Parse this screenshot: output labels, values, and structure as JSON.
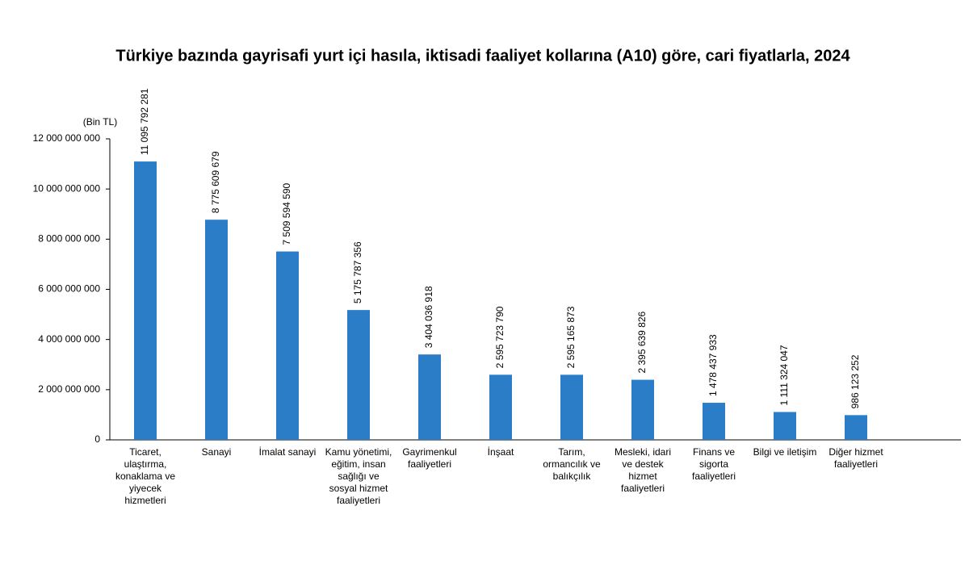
{
  "chart_data": {
    "type": "bar",
    "title": "Türkiye bazında gayrisafi yurt içi hasıla, iktisadi faaliyet kollarına (A10) göre, cari fiyatlarla, 2024",
    "y_label": "(Bin TL)",
    "categories": [
      "Ticaret, ulaştırma, konaklama ve yiyecek hizmetleri",
      "Sanayi",
      "İmalat sanayi",
      "Kamu yönetimi, eğitim, insan sağlığı ve sosyal hizmet faaliyetleri",
      "Gayrimenkul faaliyetleri",
      "İnşaat",
      "Tarım, ormancılık ve balıkçılık",
      "Mesleki, idari ve destek hizmet faaliyetleri",
      "Finans ve sigorta faaliyetleri",
      "Bilgi ve iletişim",
      "Diğer hizmet faaliyetleri"
    ],
    "values": [
      11095792281,
      8775609679,
      7509594590,
      5175787356,
      3404036918,
      2595723790,
      2595165873,
      2395639826,
      1478437933,
      1111324047,
      986123252
    ],
    "value_labels": [
      "11 095 792 281",
      "8 775 609 679",
      "7 509 594 590",
      "5 175 787 356",
      "3 404 036 918",
      "2 595 723 790",
      "2 595 165 873",
      "2 395 639 826",
      "1 478 437 933",
      "1 111 324 047",
      "986 123 252"
    ],
    "color": "#2b7dc8",
    "ylim": [
      0,
      12000000000
    ],
    "yticks": [
      0,
      {
        "value": 2000000000,
        "label": "2 000 000 000"
      },
      {
        "value": 4000000000,
        "label": "4 000 000 000"
      },
      {
        "value": 6000000000,
        "label": "6 000 000 000"
      },
      {
        "value": 8000000000,
        "label": "8 000 000 000"
      },
      {
        "value": 10000000000,
        "label": "10 000 000 000"
      },
      {
        "value": 12000000000,
        "label": "12 000 000 000"
      }
    ],
    "grid": false
  }
}
